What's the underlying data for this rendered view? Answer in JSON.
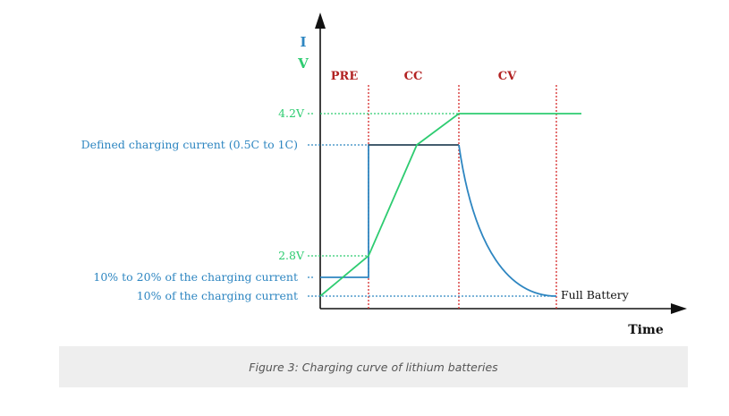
{
  "axes": {
    "y_label_i": "I",
    "y_label_v": "V",
    "x_label": "Time"
  },
  "phases": {
    "pre": "PRE",
    "cc": "CC",
    "cv": "CV"
  },
  "labels": {
    "v42": "4.2V",
    "defined_current": "Defined charging current (0.5C to 1C)",
    "v28": "2.8V",
    "pre_current": "10% to 20% of the charging current",
    "term_current": "10% of the charging current",
    "full_battery": "Full Battery"
  },
  "caption": "Figure 3: Charging curve of lithium batteries",
  "colors": {
    "current": "#2e86c1",
    "voltage": "#2ecc71",
    "phase_line": "#d62828",
    "phase_label": "#b22222",
    "axis": "#111111"
  }
}
